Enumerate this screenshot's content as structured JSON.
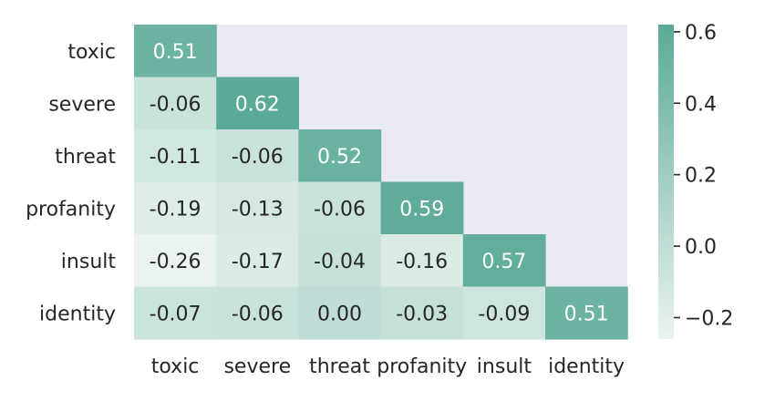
{
  "chart_data": {
    "type": "heatmap",
    "rows": [
      "toxic",
      "severe",
      "threat",
      "profanity",
      "insult",
      "identity"
    ],
    "columns": [
      "toxic",
      "severe",
      "threat",
      "profanity",
      "insult",
      "identity"
    ],
    "mask": "upper-triangle",
    "values": [
      [
        0.51,
        null,
        null,
        null,
        null,
        null
      ],
      [
        -0.06,
        0.62,
        null,
        null,
        null,
        null
      ],
      [
        -0.11,
        -0.06,
        0.52,
        null,
        null,
        null
      ],
      [
        -0.19,
        -0.13,
        -0.06,
        0.59,
        null,
        null
      ],
      [
        -0.26,
        -0.17,
        -0.04,
        -0.16,
        0.57,
        null
      ],
      [
        -0.07,
        -0.06,
        0.0,
        -0.03,
        -0.09,
        0.51
      ]
    ],
    "value_labels": [
      [
        "0.51",
        "",
        "",
        "",
        "",
        ""
      ],
      [
        "-0.06",
        "0.62",
        "",
        "",
        "",
        ""
      ],
      [
        "-0.11",
        "-0.06",
        "0.52",
        "",
        "",
        ""
      ],
      [
        "-0.19",
        "-0.13",
        "-0.06",
        "0.59",
        "",
        ""
      ],
      [
        "-0.26",
        "-0.17",
        "-0.04",
        "-0.16",
        "0.57",
        ""
      ],
      [
        "-0.07",
        "-0.06",
        "0.00",
        "-0.03",
        "-0.09",
        "0.51"
      ]
    ],
    "colorbar": {
      "min": -0.26,
      "max": 0.62,
      "ticks": [
        -0.2,
        0.0,
        0.2,
        0.4,
        0.6
      ],
      "tick_labels": [
        "−0.2",
        "0.0",
        "0.2",
        "0.4",
        "0.6"
      ],
      "color_low": "#eaf3f0",
      "color_high": "#5aaa98"
    },
    "background_color": "#eaeaf2",
    "title": "",
    "xlabel": "",
    "ylabel": ""
  }
}
